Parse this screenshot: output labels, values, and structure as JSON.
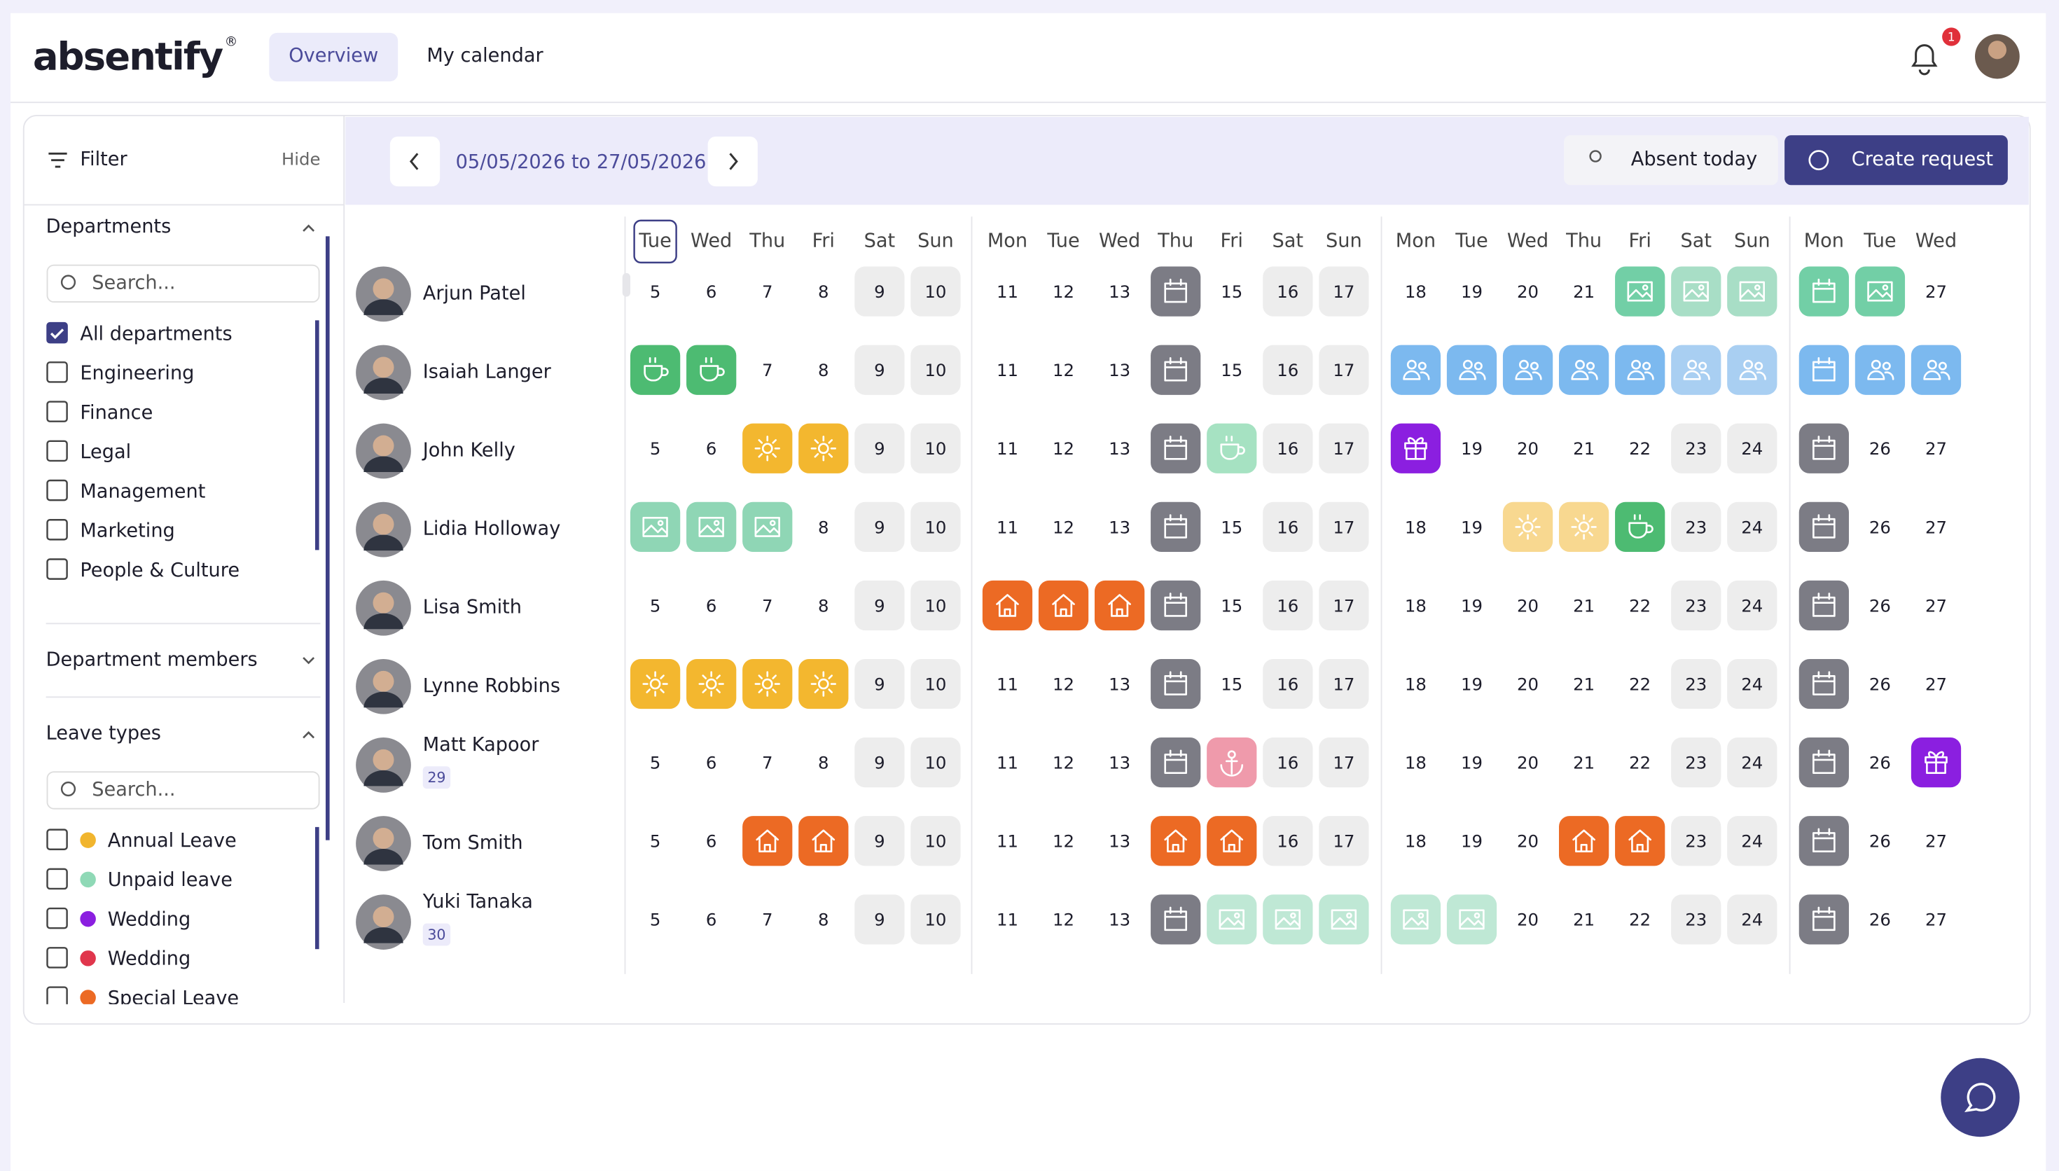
{
  "header": {
    "logo": "absentify",
    "logo_mark": "®",
    "tabs": [
      "Overview",
      "My calendar"
    ],
    "notifications": "1"
  },
  "sidebar": {
    "filter": "Filter",
    "hide": "Hide",
    "departments": {
      "title": "Departments",
      "search": "Search...",
      "items": [
        {
          "label": "All departments",
          "checked": true
        },
        {
          "label": "Engineering",
          "checked": false
        },
        {
          "label": "Finance",
          "checked": false
        },
        {
          "label": "Legal",
          "checked": false
        },
        {
          "label": "Management",
          "checked": false
        },
        {
          "label": "Marketing",
          "checked": false
        },
        {
          "label": "People & Culture",
          "checked": false
        }
      ]
    },
    "members": {
      "title": "Department members"
    },
    "leave_types": {
      "title": "Leave types",
      "search": "Search...",
      "items": [
        {
          "label": "Annual Leave",
          "color": "#f1b52e"
        },
        {
          "label": "Unpaid leave",
          "color": "#8fd9b6"
        },
        {
          "label": "Wedding",
          "color": "#8b1fe0"
        },
        {
          "label": "Wedding",
          "color": "#e0364c"
        },
        {
          "label": "Special Leave",
          "color": "#ec6a24"
        }
      ]
    }
  },
  "toolbar": {
    "range": "05/05/2026 to 27/05/2026",
    "absent_today": "Absent today",
    "create": "Create request"
  },
  "calendar": {
    "weekdays": [
      "Tue",
      "Wed",
      "Thu",
      "Fri",
      "Sat",
      "Sun",
      "Mon",
      "Tue",
      "Wed",
      "Thu",
      "Fri",
      "Sat",
      "Sun",
      "Mon",
      "Tue",
      "Wed",
      "Thu",
      "Fri",
      "Sat",
      "Sun",
      "Mon",
      "Tue",
      "Wed"
    ],
    "people": [
      {
        "name": "Arjun Patel",
        "cells": [
          5,
          6,
          7,
          8,
          {
            "value": 9,
            "bg": "#ededed"
          },
          {
            "value": 10,
            "bg": "#ededed"
          },
          11,
          12,
          13,
          {
            "icon": "calendar",
            "bg": "#7c7c85"
          },
          15,
          {
            "value": 16,
            "bg": "#ededed"
          },
          {
            "value": 17,
            "bg": "#ededed"
          },
          18,
          19,
          20,
          21,
          {
            "icon": "image",
            "bg": "#72cfa6"
          },
          {
            "icon": "image",
            "bg": "#a8dec6"
          },
          {
            "icon": "image",
            "bg": "#a8dec6"
          },
          {
            "icon": "calendar",
            "bg": "#72cfa6"
          },
          {
            "icon": "image",
            "bg": "#72cfa6"
          },
          27
        ]
      },
      {
        "name": "Isaiah Langer",
        "cells": [
          {
            "icon": "coffee",
            "bg": "#4dbb72"
          },
          {
            "icon": "coffee",
            "bg": "#4dbb72"
          },
          7,
          8,
          {
            "value": 9,
            "bg": "#ededed"
          },
          {
            "value": 10,
            "bg": "#ededed"
          },
          11,
          12,
          13,
          {
            "icon": "calendar",
            "bg": "#7c7c85"
          },
          15,
          {
            "value": 16,
            "bg": "#ededed"
          },
          {
            "value": 17,
            "bg": "#ededed"
          },
          {
            "icon": "people",
            "bg": "#7cb9ef"
          },
          {
            "icon": "people",
            "bg": "#7cb9ef"
          },
          {
            "icon": "people",
            "bg": "#7cb9ef"
          },
          {
            "icon": "people",
            "bg": "#7cb9ef"
          },
          {
            "icon": "people",
            "bg": "#7cb9ef"
          },
          {
            "icon": "people",
            "bg": "#a9cff2"
          },
          {
            "icon": "people",
            "bg": "#a9cff2"
          },
          {
            "icon": "calendar",
            "bg": "#7cb9ef"
          },
          {
            "icon": "people",
            "bg": "#7cb9ef"
          },
          {
            "icon": "people",
            "bg": "#7cb9ef"
          }
        ]
      },
      {
        "name": "John Kelly",
        "cells": [
          5,
          6,
          {
            "icon": "sun",
            "bg": "#f3b72f"
          },
          {
            "icon": "sun",
            "bg": "#f3b72f"
          },
          {
            "value": 9,
            "bg": "#ededed"
          },
          {
            "value": 10,
            "bg": "#ededed"
          },
          11,
          12,
          13,
          {
            "icon": "calendar",
            "bg": "#7c7c85"
          },
          {
            "icon": "coffee",
            "bg": "#a6e2c2"
          },
          {
            "value": 16,
            "bg": "#ededed"
          },
          {
            "value": 17,
            "bg": "#ededed"
          },
          {
            "icon": "gift",
            "bg": "#8b1fe0"
          },
          19,
          20,
          21,
          22,
          {
            "value": 23,
            "bg": "#ededed"
          },
          {
            "value": 24,
            "bg": "#ededed"
          },
          {
            "icon": "calendar",
            "bg": "#7c7c85"
          },
          26,
          27
        ]
      },
      {
        "name": "Lidia Holloway",
        "cells": [
          {
            "icon": "image",
            "bg": "#8fd6b5"
          },
          {
            "icon": "image",
            "bg": "#8fd6b5"
          },
          {
            "icon": "image",
            "bg": "#8fd6b5"
          },
          8,
          {
            "value": 9,
            "bg": "#ededed"
          },
          {
            "value": 10,
            "bg": "#ededed"
          },
          11,
          12,
          13,
          {
            "icon": "calendar",
            "bg": "#7c7c85"
          },
          15,
          {
            "value": 16,
            "bg": "#ededed"
          },
          {
            "value": 17,
            "bg": "#ededed"
          },
          18,
          19,
          {
            "icon": "sun",
            "bg": "#f8d890"
          },
          {
            "icon": "sun",
            "bg": "#f8d890"
          },
          {
            "icon": "coffee",
            "bg": "#4dbb72"
          },
          {
            "value": 23,
            "bg": "#ededed"
          },
          {
            "value": 24,
            "bg": "#ededed"
          },
          {
            "icon": "calendar",
            "bg": "#7c7c85"
          },
          26,
          27
        ]
      },
      {
        "name": "Lisa Smith",
        "cells": [
          5,
          6,
          7,
          8,
          {
            "value": 9,
            "bg": "#ededed"
          },
          {
            "value": 10,
            "bg": "#ededed"
          },
          {
            "icon": "home",
            "bg": "#ec6a24"
          },
          {
            "icon": "home",
            "bg": "#ec6a24"
          },
          {
            "icon": "home",
            "bg": "#ec6a24"
          },
          {
            "icon": "calendar",
            "bg": "#7c7c85"
          },
          15,
          {
            "value": 16,
            "bg": "#ededed"
          },
          {
            "value": 17,
            "bg": "#ededed"
          },
          18,
          19,
          20,
          21,
          22,
          {
            "value": 23,
            "bg": "#ededed"
          },
          {
            "value": 24,
            "bg": "#ededed"
          },
          {
            "icon": "calendar",
            "bg": "#7c7c85"
          },
          26,
          27
        ]
      },
      {
        "name": "Lynne Robbins",
        "cells": [
          {
            "icon": "sun",
            "bg": "#f3b72f"
          },
          {
            "icon": "sun",
            "bg": "#f3b72f"
          },
          {
            "icon": "sun",
            "bg": "#f3b72f"
          },
          {
            "icon": "sun",
            "bg": "#f3b72f"
          },
          {
            "value": 9,
            "bg": "#ededed"
          },
          {
            "value": 10,
            "bg": "#ededed"
          },
          11,
          12,
          13,
          {
            "icon": "calendar",
            "bg": "#7c7c85"
          },
          15,
          {
            "value": 16,
            "bg": "#ededed"
          },
          {
            "value": 17,
            "bg": "#ededed"
          },
          18,
          19,
          20,
          21,
          22,
          {
            "value": 23,
            "bg": "#ededed"
          },
          {
            "value": 24,
            "bg": "#ededed"
          },
          {
            "icon": "calendar",
            "bg": "#7c7c85"
          },
          26,
          27
        ]
      },
      {
        "name": "Matt Kapoor",
        "badge": "29",
        "cells": [
          5,
          6,
          7,
          8,
          {
            "value": 9,
            "bg": "#ededed"
          },
          {
            "value": 10,
            "bg": "#ededed"
          },
          11,
          12,
          13,
          {
            "icon": "calendar",
            "bg": "#7c7c85"
          },
          {
            "icon": "anchor",
            "bg": "#ef9aab"
          },
          {
            "value": 16,
            "bg": "#ededed"
          },
          {
            "value": 17,
            "bg": "#ededed"
          },
          18,
          19,
          20,
          21,
          22,
          {
            "value": 23,
            "bg": "#ededed"
          },
          {
            "value": 24,
            "bg": "#ededed"
          },
          {
            "icon": "calendar",
            "bg": "#7c7c85"
          },
          26,
          {
            "icon": "gift",
            "bg": "#8b1fe0"
          }
        ]
      },
      {
        "name": "Tom Smith",
        "cells": [
          5,
          6,
          {
            "icon": "home",
            "bg": "#ec6a24"
          },
          {
            "icon": "home",
            "bg": "#ec6a24"
          },
          {
            "value": 9,
            "bg": "#ededed"
          },
          {
            "value": 10,
            "bg": "#ededed"
          },
          11,
          12,
          13,
          {
            "icon": "home",
            "bg": "#ec6a24"
          },
          {
            "icon": "home",
            "bg": "#ec6a24"
          },
          {
            "value": 16,
            "bg": "#ededed"
          },
          {
            "value": 17,
            "bg": "#ededed"
          },
          18,
          19,
          20,
          {
            "icon": "home",
            "bg": "#ec6a24"
          },
          {
            "icon": "home",
            "bg": "#ec6a24"
          },
          {
            "value": 23,
            "bg": "#ededed"
          },
          {
            "value": 24,
            "bg": "#ededed"
          },
          {
            "icon": "calendar",
            "bg": "#7c7c85"
          },
          26,
          27
        ]
      },
      {
        "name": "Yuki Tanaka",
        "badge": "30",
        "cells": [
          5,
          6,
          7,
          8,
          {
            "value": 9,
            "bg": "#ededed"
          },
          {
            "value": 10,
            "bg": "#ededed"
          },
          11,
          12,
          13,
          {
            "icon": "calendar",
            "bg": "#7c7c85"
          },
          {
            "icon": "image",
            "bg": "#bfe8d5"
          },
          {
            "icon": "image",
            "bg": "#bfe8d5"
          },
          {
            "icon": "image",
            "bg": "#bfe8d5"
          },
          {
            "icon": "image",
            "bg": "#bfe8d5"
          },
          {
            "icon": "image",
            "bg": "#bfe8d5"
          },
          20,
          21,
          22,
          {
            "value": 23,
            "bg": "#ededed"
          },
          {
            "value": 24,
            "bg": "#ededed"
          },
          {
            "icon": "calendar",
            "bg": "#7c7c85"
          },
          26,
          27
        ]
      }
    ]
  }
}
